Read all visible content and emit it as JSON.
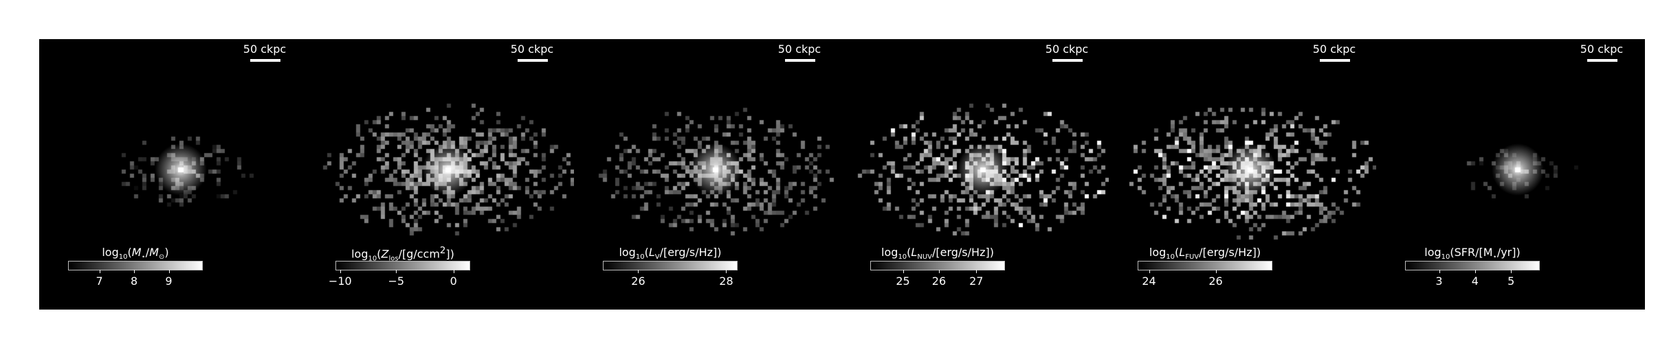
{
  "panels": [
    {
      "scale_label": "50 ckpc",
      "colorbar_label": "log10(M⋆/M⊙)",
      "colorbar_label_html": "log<sub>10</sub>(<i>M</i><sub>⋆</sub>/<i>M</i><sub>⊙</sub>)",
      "ticks": [
        {
          "label": "7",
          "frac": 0.23
        },
        {
          "label": "8",
          "frac": 0.49
        },
        {
          "label": "9",
          "frac": 0.75
        }
      ]
    },
    {
      "scale_label": "50 ckpc",
      "colorbar_label": "log10(Zlos/[g/ccm2])",
      "colorbar_label_html": "log<sub>10</sub>(<i>Z</i><sub>los</sub>/[g/ccm<sup>2</sup>])",
      "ticks": [
        {
          "label": "−10",
          "frac": 0.03
        },
        {
          "label": "−5",
          "frac": 0.45
        },
        {
          "label": "0",
          "frac": 0.88
        }
      ]
    },
    {
      "scale_label": "50 ckpc",
      "colorbar_label": "log10(LV/[erg/s/Hz])",
      "colorbar_label_html": "log<sub>10</sub>(<i>L</i><sub>V</sub>/[erg/s/Hz])",
      "ticks": [
        {
          "label": "26",
          "frac": 0.26
        },
        {
          "label": "28",
          "frac": 0.92
        }
      ]
    },
    {
      "scale_label": "50 ckpc",
      "colorbar_label": "log10(LNUV/[erg/s/Hz])",
      "colorbar_label_html": "log<sub>10</sub>(<i>L</i><sub>NUV</sub>/[erg/s/Hz])",
      "ticks": [
        {
          "label": "25",
          "frac": 0.24
        },
        {
          "label": "26",
          "frac": 0.51
        },
        {
          "label": "27",
          "frac": 0.79
        }
      ]
    },
    {
      "scale_label": "50 ckpc",
      "colorbar_label": "log10(LFUV/[erg/s/Hz])",
      "colorbar_label_html": "log<sub>10</sub>(<i>L</i><sub>FUV</sub>/[erg/s/Hz])",
      "ticks": [
        {
          "label": "24",
          "frac": 0.08
        },
        {
          "label": "26",
          "frac": 0.58
        }
      ]
    },
    {
      "scale_label": "50 ckpc",
      "colorbar_label": "log10(SFR/[M⋆/yr])",
      "colorbar_label_html": "log<sub>10</sub>(SFR/[M<sub>⋆</sub>/yr])",
      "ticks": [
        {
          "label": "3",
          "frac": 0.25
        },
        {
          "label": "4",
          "frac": 0.52
        },
        {
          "label": "5",
          "frac": 0.79
        }
      ]
    }
  ]
}
